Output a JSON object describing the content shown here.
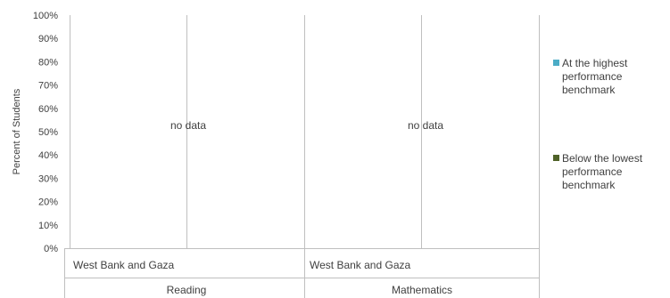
{
  "chart_data": {
    "type": "bar",
    "ylabel": "Percent of Students",
    "ylim": [
      0,
      100
    ],
    "yticks": [
      "0%",
      "10%",
      "20%",
      "30%",
      "40%",
      "50%",
      "60%",
      "70%",
      "80%",
      "90%",
      "100%"
    ],
    "groups": [
      {
        "subject": "Reading",
        "category": "West Bank and Gaza",
        "annotation": "no data"
      },
      {
        "subject": "Mathematics",
        "category": "West Bank and Gaza",
        "annotation": "no data"
      }
    ],
    "series": [
      {
        "name": "At the highest performance benchmark",
        "color": "#4BACC6",
        "values": [
          null,
          null
        ]
      },
      {
        "name": "Below the lowest performance benchmark",
        "color": "#4F6228",
        "values": [
          null,
          null
        ]
      }
    ],
    "grid": false,
    "legend_position": "right"
  }
}
